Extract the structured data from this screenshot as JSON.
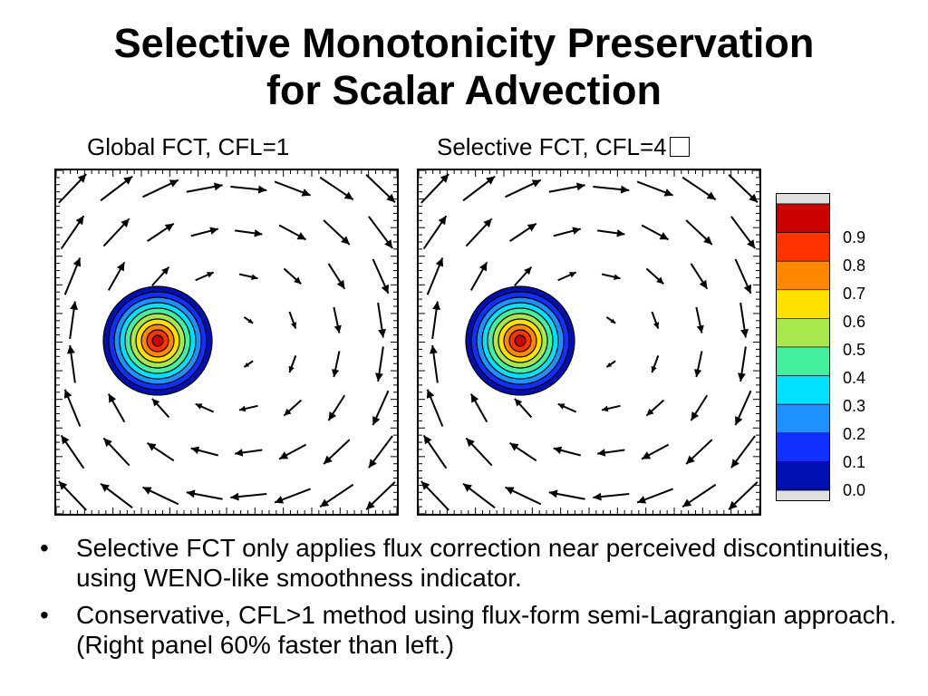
{
  "slide": {
    "title_line1": "Selective Monotonicity Preservation",
    "title_line2": "for Scalar Advection"
  },
  "panels": [
    {
      "title": "Global FCT, CFL=1"
    },
    {
      "title": "Selective FCT, CFL=4"
    }
  ],
  "colorbar": {
    "labels": [
      "0.9",
      "0.8",
      "0.7",
      "0.6",
      "0.5",
      "0.4",
      "0.3",
      "0.2",
      "0.1",
      "0.0"
    ],
    "colors": [
      "#c80000",
      "#ff3300",
      "#ff8800",
      "#ffe000",
      "#a8e84c",
      "#44f0a0",
      "#00e0ff",
      "#1e90ff",
      "#1030ff",
      "#0010b0"
    ],
    "end_color": "#e0e0e0"
  },
  "bullets": [
    {
      "mark": "•",
      "text": "Selective FCT only applies flux correction near perceived discontinuities, using WENO-like smoothness indicator."
    },
    {
      "mark": "•",
      "text": "Conservative, CFL>1 method using flux-form semi-Lagrangian approach.  (Right panel 60% faster than left.)"
    }
  ]
}
